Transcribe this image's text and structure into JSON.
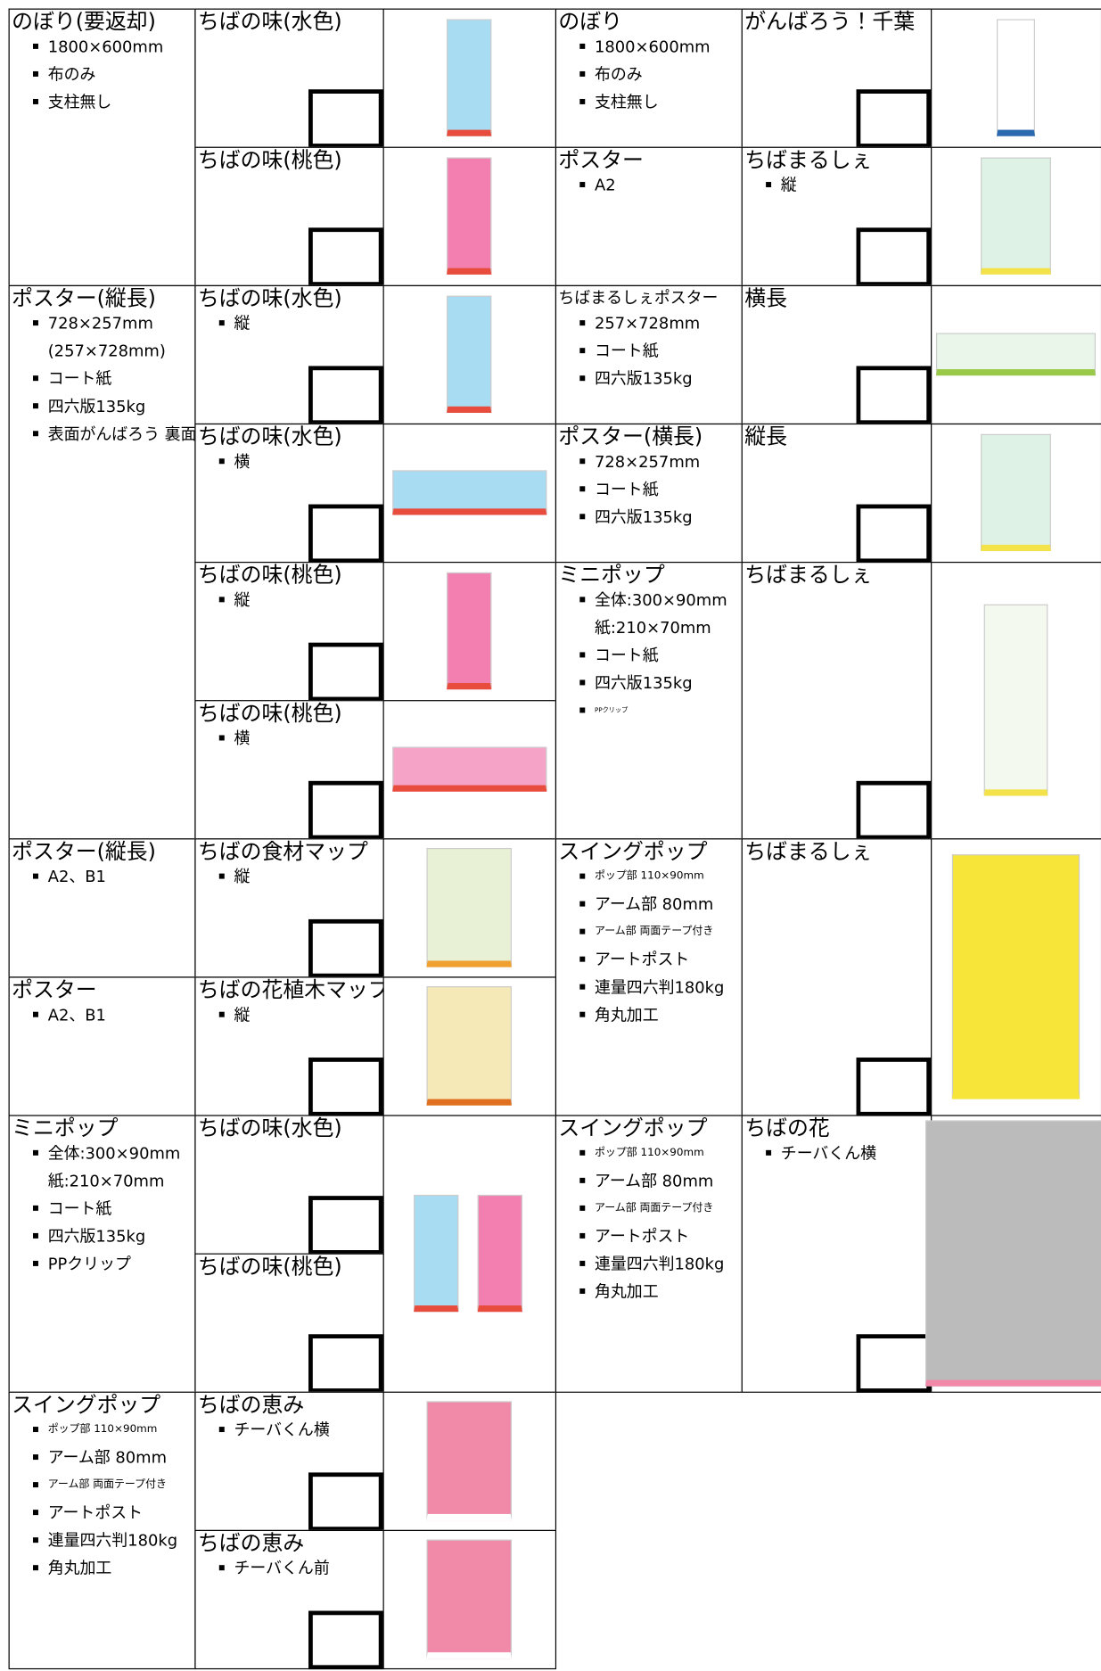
{
  "left": [
    {
      "category": "のぼり(要返却)",
      "specs": [
        "1800×600mm",
        "布のみ",
        "支柱無し"
      ],
      "items": [
        {
          "name": "ちばの味(水色)",
          "specs": []
        },
        {
          "name": "ちばの味(桃色)",
          "specs": []
        }
      ]
    },
    {
      "category": "ポスター(縦長)",
      "specs": [
        "728×257mm",
        "(257×728mm)",
        "コート紙",
        "四六版135kg",
        "表面がんばろう 裏面ちばの味"
      ],
      "items": [
        {
          "name": "ちばの味(水色)",
          "specs": [
            "縦"
          ]
        },
        {
          "name": "ちばの味(水色)",
          "specs": [
            "横"
          ]
        },
        {
          "name": "ちばの味(桃色)",
          "specs": [
            "縦"
          ]
        },
        {
          "name": "ちばの味(桃色)",
          "specs": [
            "横"
          ]
        }
      ]
    },
    {
      "category": "ポスター(縦長)",
      "specs": [
        "A2、B1"
      ],
      "items": [
        {
          "name": "ちばの食材マップ",
          "specs": [
            "縦"
          ]
        }
      ]
    },
    {
      "category": "ポスター",
      "specs": [
        "A2、B1"
      ],
      "items": [
        {
          "name": "ちばの花植木マップ",
          "specs": [
            "縦"
          ]
        }
      ]
    },
    {
      "category": "ミニポップ",
      "specs": [
        "全体:300×90mm",
        "紙:210×70mm",
        "コート紙",
        "四六版135kg",
        "PPクリップ"
      ],
      "items": [
        {
          "name": "ちばの味(水色)",
          "specs": []
        },
        {
          "name": "ちばの味(桃色)",
          "specs": []
        }
      ]
    },
    {
      "category": "スイングポップ",
      "specs": [
        "ポップ部 110×90mm",
        "アーム部 80mm",
        "アーム部 両面テープ付き",
        "アートポスト",
        "連量四六判180kg",
        "角丸加工"
      ],
      "items": [
        {
          "name": "ちばの恵み",
          "specs": [
            "チーバくん横"
          ]
        },
        {
          "name": "ちばの恵み",
          "specs": [
            "チーバくん前"
          ]
        }
      ]
    }
  ],
  "right": [
    {
      "category": "のぼり",
      "specs": [
        "1800×600mm",
        "布のみ",
        "支柱無し"
      ],
      "item": {
        "name": "がんばろう！千葉",
        "specs": []
      }
    },
    {
      "category": "ポスター",
      "specs": [
        "A2"
      ],
      "item": {
        "name": "ちばまるしぇ",
        "specs": [
          "縦"
        ]
      }
    },
    {
      "category": "ちばまるしぇポスター",
      "specs": [
        "257×728mm",
        "コート紙",
        "四六版135kg"
      ],
      "item": {
        "name": "横長",
        "specs": []
      }
    },
    {
      "category": "ポスター(横長)",
      "specs": [
        "728×257mm",
        "コート紙",
        "四六版135kg"
      ],
      "item": {
        "name": "縦長",
        "specs": []
      }
    },
    {
      "category": "ミニポップ",
      "specs": [
        "全体:300×90mm",
        "紙:210×70mm",
        "コート紙",
        "四六版135kg",
        "PPクリップ"
      ],
      "item": {
        "name": "ちばまるしぇ",
        "specs": []
      }
    },
    {
      "category": "スイングポップ",
      "specs": [
        "ポップ部 110×90mm",
        "アーム部 80mm",
        "アーム部 両面テープ付き",
        "アートポスト",
        "連量四六判180kg",
        "角丸加工"
      ],
      "item": {
        "name": "ちばまるしぇ",
        "specs": []
      }
    },
    {
      "category": "スイングポップ",
      "specs": [
        "ポップ部 110×90mm",
        "アーム部 80mm",
        "アーム部 両面テープ付き",
        "アートポスト",
        "連量四六判180kg",
        "角丸加工"
      ],
      "item": {
        "name": "ちばの花",
        "specs": [
          "チーバくん横"
        ]
      }
    }
  ]
}
